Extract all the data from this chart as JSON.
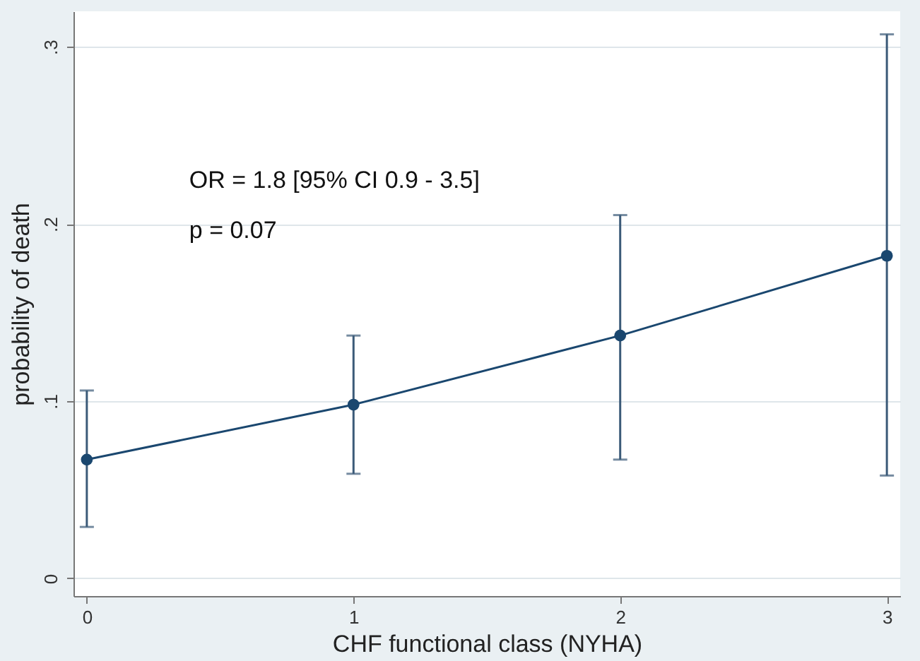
{
  "chart_data": {
    "type": "line",
    "xlabel": "CHF functional class (NYHA)",
    "ylabel": "probability of death",
    "x": [
      0,
      1,
      2,
      3
    ],
    "series": [
      {
        "color": "#1a476f",
        "values": [
          0.067,
          0.098,
          0.137,
          0.182
        ],
        "errors": [
          [
            0.029,
            0.106
          ],
          [
            0.059,
            0.137
          ],
          [
            0.067,
            0.205
          ],
          [
            0.058,
            0.307
          ]
        ]
      }
    ],
    "xlim": [
      -0.05,
      3.05
    ],
    "xticks": [
      0,
      1,
      2,
      3
    ],
    "ylim": [
      -0.01,
      0.32
    ],
    "yticks": [
      {
        "value": 0,
        "label": "0"
      },
      {
        "value": 0.1,
        "label": ".1"
      },
      {
        "value": 0.2,
        "label": ".2"
      },
      {
        "value": 0.3,
        "label": ".3"
      }
    ],
    "grid": "y",
    "marker": "circle",
    "line_style": "solid",
    "annotations": [
      "OR = 1.8 [95% CI 0.9 - 3.5]",
      "p = 0.07"
    ]
  }
}
